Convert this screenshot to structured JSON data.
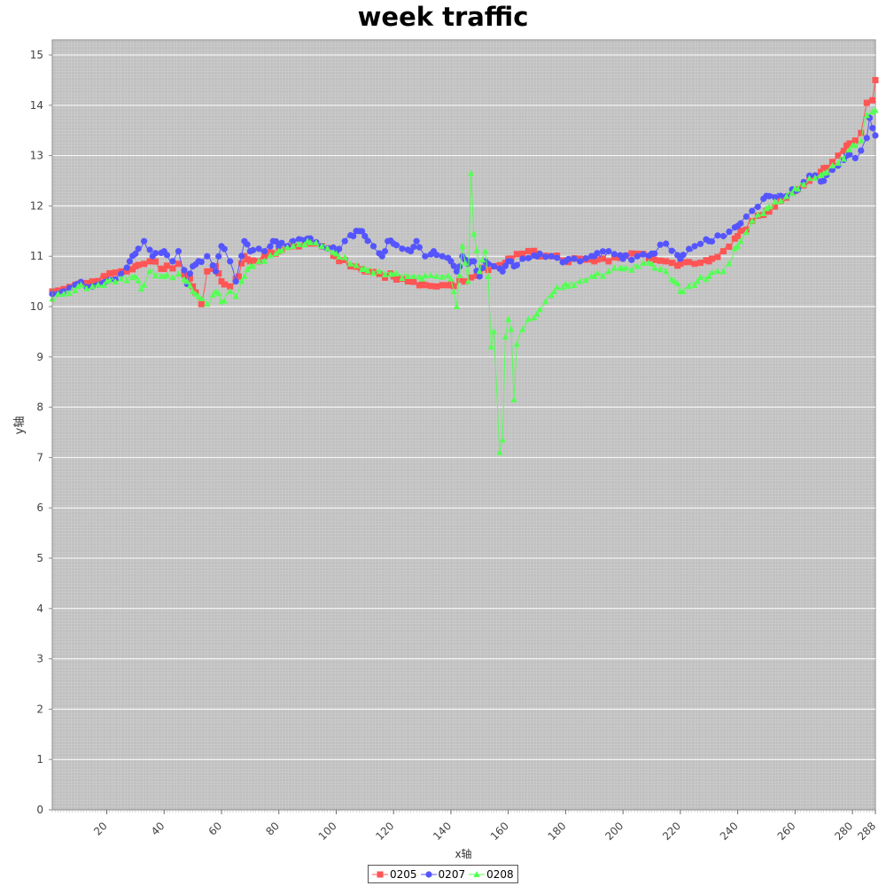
{
  "chart_data": {
    "type": "line",
    "title": "week traffic",
    "xlabel": "x轴",
    "ylabel": "y轴",
    "xlim": [
      1,
      288
    ],
    "ylim": [
      0,
      15.3
    ],
    "x_ticks": [
      20,
      40,
      60,
      80,
      100,
      120,
      140,
      160,
      180,
      200,
      220,
      240,
      260,
      280,
      288
    ],
    "y_ticks": [
      0,
      1,
      2,
      3,
      4,
      5,
      6,
      7,
      8,
      9,
      10,
      11,
      12,
      13,
      14,
      15
    ],
    "grid": true,
    "legend_position": "bottom",
    "series": [
      {
        "name": "0205",
        "color": "#ff5555",
        "marker": "square",
        "points": [
          [
            1,
            10.3
          ],
          [
            5,
            10.35
          ],
          [
            10,
            10.45
          ],
          [
            15,
            10.5
          ],
          [
            20,
            10.6
          ],
          [
            25,
            10.7
          ],
          [
            30,
            10.8
          ],
          [
            35,
            10.9
          ],
          [
            40,
            10.75
          ],
          [
            45,
            10.85
          ],
          [
            48,
            10.6
          ],
          [
            50,
            10.4
          ],
          [
            53,
            10.05
          ],
          [
            55,
            10.7
          ],
          [
            58,
            10.8
          ],
          [
            60,
            10.5
          ],
          [
            63,
            10.4
          ],
          [
            66,
            10.6
          ],
          [
            68,
            11.0
          ],
          [
            70,
            10.9
          ],
          [
            75,
            11.0
          ],
          [
            80,
            11.1
          ],
          [
            85,
            11.2
          ],
          [
            90,
            11.3
          ],
          [
            95,
            11.2
          ],
          [
            100,
            11.0
          ],
          [
            105,
            10.8
          ],
          [
            110,
            10.7
          ],
          [
            115,
            10.65
          ],
          [
            120,
            10.6
          ],
          [
            125,
            10.5
          ],
          [
            130,
            10.45
          ],
          [
            135,
            10.4
          ],
          [
            140,
            10.45
          ],
          [
            145,
            10.5
          ],
          [
            150,
            10.7
          ],
          [
            155,
            10.8
          ],
          [
            160,
            10.95
          ],
          [
            165,
            11.05
          ],
          [
            170,
            11.05
          ],
          [
            175,
            11.0
          ],
          [
            180,
            10.9
          ],
          [
            185,
            10.95
          ],
          [
            190,
            10.9
          ],
          [
            195,
            10.9
          ],
          [
            200,
            11.0
          ],
          [
            205,
            11.05
          ],
          [
            210,
            11.0
          ],
          [
            215,
            10.9
          ],
          [
            220,
            10.85
          ],
          [
            225,
            10.85
          ],
          [
            230,
            10.9
          ],
          [
            235,
            11.1
          ],
          [
            240,
            11.4
          ],
          [
            245,
            11.7
          ],
          [
            250,
            11.9
          ],
          [
            255,
            12.1
          ],
          [
            260,
            12.3
          ],
          [
            265,
            12.5
          ],
          [
            270,
            12.75
          ],
          [
            275,
            13.0
          ],
          [
            278,
            13.2
          ],
          [
            281,
            13.3
          ],
          [
            283,
            13.45
          ],
          [
            285,
            14.05
          ],
          [
            287,
            14.1
          ],
          [
            288,
            14.5
          ]
        ]
      },
      {
        "name": "0207",
        "color": "#5555ff",
        "marker": "circle",
        "points": [
          [
            1,
            10.25
          ],
          [
            5,
            10.3
          ],
          [
            10,
            10.45
          ],
          [
            15,
            10.4
          ],
          [
            20,
            10.5
          ],
          [
            25,
            10.65
          ],
          [
            28,
            10.9
          ],
          [
            30,
            11.05
          ],
          [
            33,
            11.3
          ],
          [
            36,
            11.0
          ],
          [
            40,
            11.1
          ],
          [
            43,
            10.9
          ],
          [
            45,
            11.1
          ],
          [
            48,
            10.45
          ],
          [
            50,
            10.8
          ],
          [
            52,
            10.9
          ],
          [
            55,
            11.0
          ],
          [
            58,
            10.7
          ],
          [
            60,
            11.2
          ],
          [
            63,
            10.9
          ],
          [
            65,
            10.5
          ],
          [
            68,
            11.3
          ],
          [
            70,
            11.1
          ],
          [
            75,
            11.1
          ],
          [
            78,
            11.3
          ],
          [
            80,
            11.2
          ],
          [
            85,
            11.3
          ],
          [
            90,
            11.35
          ],
          [
            95,
            11.2
          ],
          [
            100,
            11.1
          ],
          [
            103,
            11.3
          ],
          [
            106,
            11.4
          ],
          [
            108,
            11.5
          ],
          [
            110,
            11.4
          ],
          [
            113,
            11.2
          ],
          [
            116,
            11.0
          ],
          [
            118,
            11.3
          ],
          [
            120,
            11.25
          ],
          [
            123,
            11.15
          ],
          [
            126,
            11.1
          ],
          [
            128,
            11.3
          ],
          [
            131,
            11.0
          ],
          [
            134,
            11.1
          ],
          [
            137,
            11.0
          ],
          [
            140,
            10.9
          ],
          [
            142,
            10.7
          ],
          [
            144,
            11.0
          ],
          [
            146,
            10.85
          ],
          [
            148,
            10.9
          ],
          [
            150,
            10.6
          ],
          [
            152,
            10.9
          ],
          [
            155,
            10.8
          ],
          [
            158,
            10.7
          ],
          [
            160,
            10.9
          ],
          [
            162,
            10.8
          ],
          [
            165,
            10.95
          ],
          [
            170,
            11.0
          ],
          [
            175,
            11.0
          ],
          [
            180,
            10.9
          ],
          [
            185,
            10.9
          ],
          [
            190,
            11.0
          ],
          [
            195,
            11.1
          ],
          [
            200,
            10.95
          ],
          [
            205,
            11.0
          ],
          [
            210,
            11.05
          ],
          [
            215,
            11.25
          ],
          [
            220,
            10.95
          ],
          [
            225,
            11.2
          ],
          [
            230,
            11.3
          ],
          [
            235,
            11.4
          ],
          [
            240,
            11.6
          ],
          [
            245,
            11.9
          ],
          [
            250,
            12.2
          ],
          [
            255,
            12.2
          ],
          [
            260,
            12.3
          ],
          [
            265,
            12.6
          ],
          [
            270,
            12.5
          ],
          [
            275,
            12.8
          ],
          [
            278,
            13.0
          ],
          [
            281,
            12.95
          ],
          [
            283,
            13.1
          ],
          [
            285,
            13.35
          ],
          [
            286,
            13.75
          ],
          [
            288,
            13.4
          ]
        ]
      },
      {
        "name": "0208",
        "color": "#55ff55",
        "marker": "triangle",
        "points": [
          [
            1,
            10.15
          ],
          [
            5,
            10.25
          ],
          [
            10,
            10.4
          ],
          [
            15,
            10.4
          ],
          [
            20,
            10.5
          ],
          [
            25,
            10.55
          ],
          [
            30,
            10.6
          ],
          [
            32,
            10.35
          ],
          [
            35,
            10.7
          ],
          [
            40,
            10.6
          ],
          [
            45,
            10.65
          ],
          [
            48,
            10.5
          ],
          [
            50,
            10.3
          ],
          [
            52,
            10.2
          ],
          [
            55,
            10.05
          ],
          [
            58,
            10.3
          ],
          [
            60,
            10.1
          ],
          [
            63,
            10.3
          ],
          [
            65,
            10.2
          ],
          [
            68,
            10.6
          ],
          [
            70,
            10.8
          ],
          [
            75,
            10.9
          ],
          [
            80,
            11.1
          ],
          [
            85,
            11.2
          ],
          [
            90,
            11.3
          ],
          [
            95,
            11.2
          ],
          [
            100,
            11.05
          ],
          [
            105,
            10.85
          ],
          [
            110,
            10.75
          ],
          [
            115,
            10.7
          ],
          [
            120,
            10.65
          ],
          [
            125,
            10.6
          ],
          [
            130,
            10.55
          ],
          [
            135,
            10.6
          ],
          [
            140,
            10.55
          ],
          [
            142,
            10.0
          ],
          [
            144,
            11.2
          ],
          [
            146,
            10.5
          ],
          [
            147,
            12.65
          ],
          [
            148,
            11.45
          ],
          [
            150,
            10.7
          ],
          [
            152,
            11.1
          ],
          [
            153,
            10.6
          ],
          [
            154,
            9.2
          ],
          [
            155,
            9.5
          ],
          [
            157,
            7.1
          ],
          [
            158,
            7.35
          ],
          [
            159,
            9.4
          ],
          [
            160,
            9.75
          ],
          [
            161,
            9.55
          ],
          [
            162,
            8.15
          ],
          [
            163,
            9.25
          ],
          [
            165,
            9.55
          ],
          [
            167,
            9.75
          ],
          [
            170,
            9.85
          ],
          [
            173,
            10.1
          ],
          [
            176,
            10.3
          ],
          [
            180,
            10.45
          ],
          [
            185,
            10.5
          ],
          [
            190,
            10.6
          ],
          [
            195,
            10.7
          ],
          [
            200,
            10.75
          ],
          [
            205,
            10.8
          ],
          [
            210,
            10.85
          ],
          [
            215,
            10.7
          ],
          [
            218,
            10.5
          ],
          [
            220,
            10.3
          ],
          [
            223,
            10.4
          ],
          [
            226,
            10.5
          ],
          [
            230,
            10.6
          ],
          [
            235,
            10.7
          ],
          [
            240,
            11.2
          ],
          [
            245,
            11.7
          ],
          [
            250,
            11.95
          ],
          [
            255,
            12.1
          ],
          [
            260,
            12.35
          ],
          [
            265,
            12.55
          ],
          [
            270,
            12.65
          ],
          [
            275,
            12.85
          ],
          [
            280,
            13.2
          ],
          [
            283,
            13.3
          ],
          [
            285,
            13.8
          ],
          [
            288,
            13.9
          ]
        ]
      }
    ]
  }
}
